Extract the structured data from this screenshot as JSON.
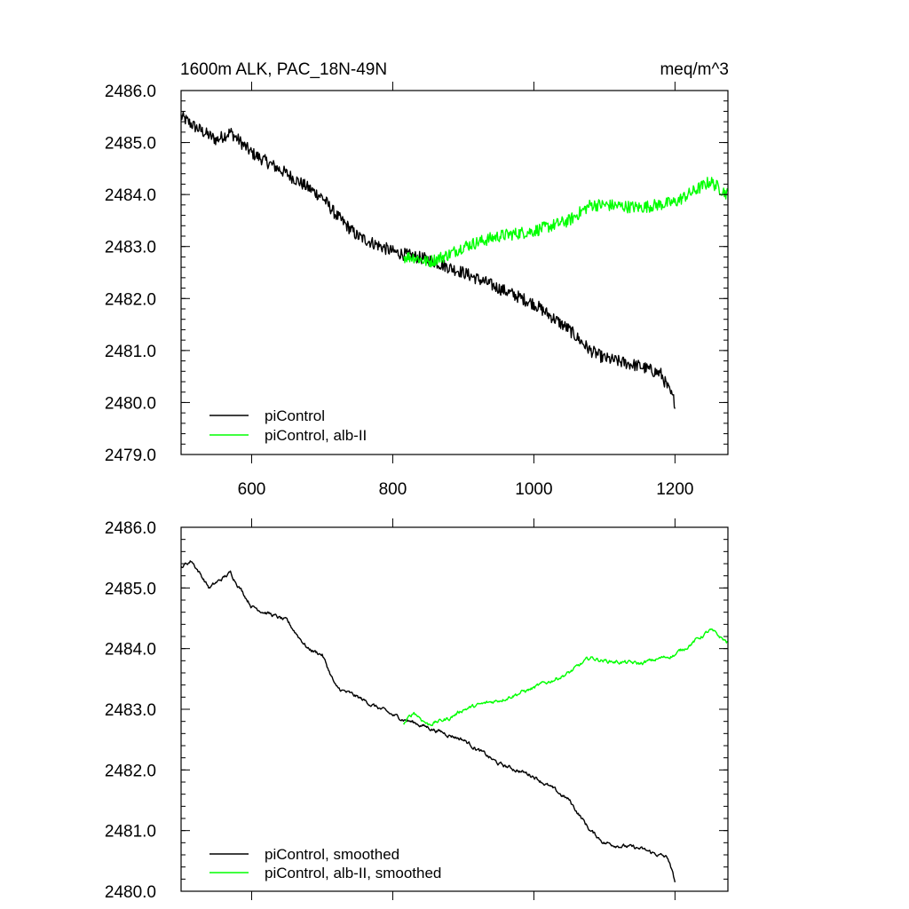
{
  "chart_data": [
    {
      "type": "line",
      "title": "1600m ALK, PAC_18N-49N",
      "units": "meq/m^3",
      "xlim": [
        500,
        1275
      ],
      "ylim": [
        2479.0,
        2486.0
      ],
      "x_ticks": [
        600,
        800,
        1000,
        1200
      ],
      "x_tick_labels": [
        "600",
        "800",
        "1000",
        "1200"
      ],
      "y_ticks": [
        2479.0,
        2480.0,
        2481.0,
        2482.0,
        2483.0,
        2484.0,
        2485.0,
        2486.0
      ],
      "y_tick_labels": [
        "2479.0",
        "2480.0",
        "2481.0",
        "2482.0",
        "2483.0",
        "2484.0",
        "2485.0",
        "2486.0"
      ],
      "legend_position": "bottom-left",
      "grid": false,
      "series": [
        {
          "name": "piControl",
          "color": "#000000",
          "x_range": [
            500,
            1200
          ],
          "keypoints": [
            [
              500,
              2485.5
            ],
            [
              520,
              2485.3
            ],
            [
              550,
              2485.05
            ],
            [
              570,
              2485.2
            ],
            [
              600,
              2484.8
            ],
            [
              650,
              2484.4
            ],
            [
              700,
              2483.95
            ],
            [
              720,
              2483.6
            ],
            [
              750,
              2483.2
            ],
            [
              800,
              2482.9
            ],
            [
              850,
              2482.75
            ],
            [
              900,
              2482.5
            ],
            [
              950,
              2482.2
            ],
            [
              1000,
              2481.9
            ],
            [
              1050,
              2481.4
            ],
            [
              1080,
              2481.0
            ],
            [
              1100,
              2480.85
            ],
            [
              1150,
              2480.7
            ],
            [
              1180,
              2480.55
            ],
            [
              1200,
              2480.0
            ]
          ],
          "noise_amplitude": 0.12
        },
        {
          "name": "piControl, alb-II",
          "color": "#00ff00",
          "x_range": [
            815,
            1275
          ],
          "keypoints": [
            [
              815,
              2482.8
            ],
            [
              830,
              2482.8
            ],
            [
              850,
              2482.7
            ],
            [
              880,
              2482.85
            ],
            [
              900,
              2483.0
            ],
            [
              950,
              2483.2
            ],
            [
              1000,
              2483.3
            ],
            [
              1050,
              2483.5
            ],
            [
              1080,
              2483.8
            ],
            [
              1100,
              2483.8
            ],
            [
              1150,
              2483.75
            ],
            [
              1200,
              2483.85
            ],
            [
              1250,
              2484.25
            ],
            [
              1275,
              2484.0
            ]
          ],
          "noise_amplitude": 0.12
        }
      ]
    },
    {
      "type": "line",
      "xlim": [
        500,
        1275
      ],
      "ylim": [
        2480.0,
        2486.0
      ],
      "x_ticks": [
        600,
        800,
        1000,
        1200
      ],
      "y_ticks": [
        2480.0,
        2481.0,
        2482.0,
        2483.0,
        2484.0,
        2485.0,
        2486.0
      ],
      "y_tick_labels": [
        "2480.0",
        "2481.0",
        "2482.0",
        "2483.0",
        "2484.0",
        "2485.0",
        "2486.0"
      ],
      "legend_position": "bottom-left",
      "grid": false,
      "series": [
        {
          "name": "piControl, smoothed",
          "color": "#000000",
          "x_range": [
            500,
            1200
          ],
          "keypoints": [
            [
              500,
              2485.35
            ],
            [
              515,
              2485.45
            ],
            [
              540,
              2485.0
            ],
            [
              570,
              2485.25
            ],
            [
              600,
              2484.7
            ],
            [
              650,
              2484.45
            ],
            [
              680,
              2484.0
            ],
            [
              700,
              2483.9
            ],
            [
              720,
              2483.35
            ],
            [
              750,
              2483.2
            ],
            [
              800,
              2482.9
            ],
            [
              850,
              2482.7
            ],
            [
              900,
              2482.5
            ],
            [
              950,
              2482.1
            ],
            [
              1000,
              2481.9
            ],
            [
              1050,
              2481.5
            ],
            [
              1080,
              2481.0
            ],
            [
              1100,
              2480.8
            ],
            [
              1150,
              2480.7
            ],
            [
              1190,
              2480.55
            ],
            [
              1200,
              2480.15
            ]
          ],
          "noise_amplitude": 0.04
        },
        {
          "name": "piControl, alb-II, smoothed",
          "color": "#00ff00",
          "x_range": [
            815,
            1275
          ],
          "keypoints": [
            [
              815,
              2482.75
            ],
            [
              830,
              2482.95
            ],
            [
              850,
              2482.75
            ],
            [
              880,
              2482.85
            ],
            [
              900,
              2483.0
            ],
            [
              950,
              2483.15
            ],
            [
              1000,
              2483.35
            ],
            [
              1050,
              2483.6
            ],
            [
              1080,
              2483.85
            ],
            [
              1100,
              2483.8
            ],
            [
              1150,
              2483.75
            ],
            [
              1200,
              2483.9
            ],
            [
              1250,
              2484.3
            ],
            [
              1275,
              2484.1
            ]
          ],
          "noise_amplitude": 0.04
        }
      ]
    }
  ]
}
